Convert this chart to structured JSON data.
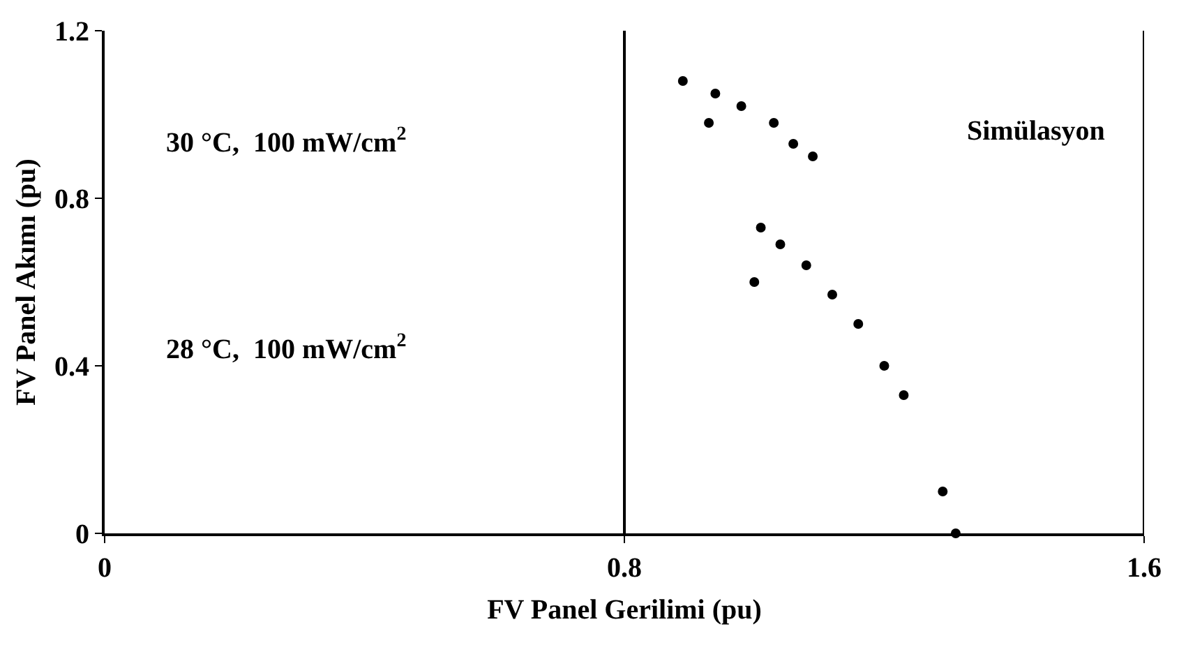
{
  "chart_data": {
    "type": "scatter",
    "xlabel": "FV Panel Gerilimi (pu)",
    "ylabel": "FV Panel Akımı (pu)",
    "xlim": [
      0,
      1.6
    ],
    "xticks": [
      0,
      0.8,
      1.6
    ],
    "ylim": [
      0,
      1.2
    ],
    "yticks": [
      0,
      0.4,
      0.8,
      1.2
    ],
    "marker": "circle",
    "series": [
      {
        "color": "#000000",
        "x": [
          0.89,
          0.93,
          0.94,
          0.98,
          1.03,
          1.06,
          1.09
        ],
        "values": [
          1.08,
          0.98,
          1.05,
          1.02,
          0.98,
          0.93,
          0.9
        ]
      },
      {
        "color": "#000000",
        "x": [
          1.0,
          1.01,
          1.04,
          1.08,
          1.12,
          1.16,
          1.2,
          1.23,
          1.29,
          1.31
        ],
        "values": [
          0.6,
          0.73,
          0.69,
          0.64,
          0.57,
          0.5,
          0.4,
          0.33,
          0.1,
          0.0
        ]
      }
    ],
    "ref_lines": [
      {
        "axis": "x",
        "value": 0.8,
        "color": "#000000",
        "line_style": "solid"
      }
    ],
    "annotations": [
      "30 °C,  100 mW/cm$^{2}$",
      "28 °C,  100 mW/cm$^{2}$",
      "Simülasyon"
    ]
  }
}
